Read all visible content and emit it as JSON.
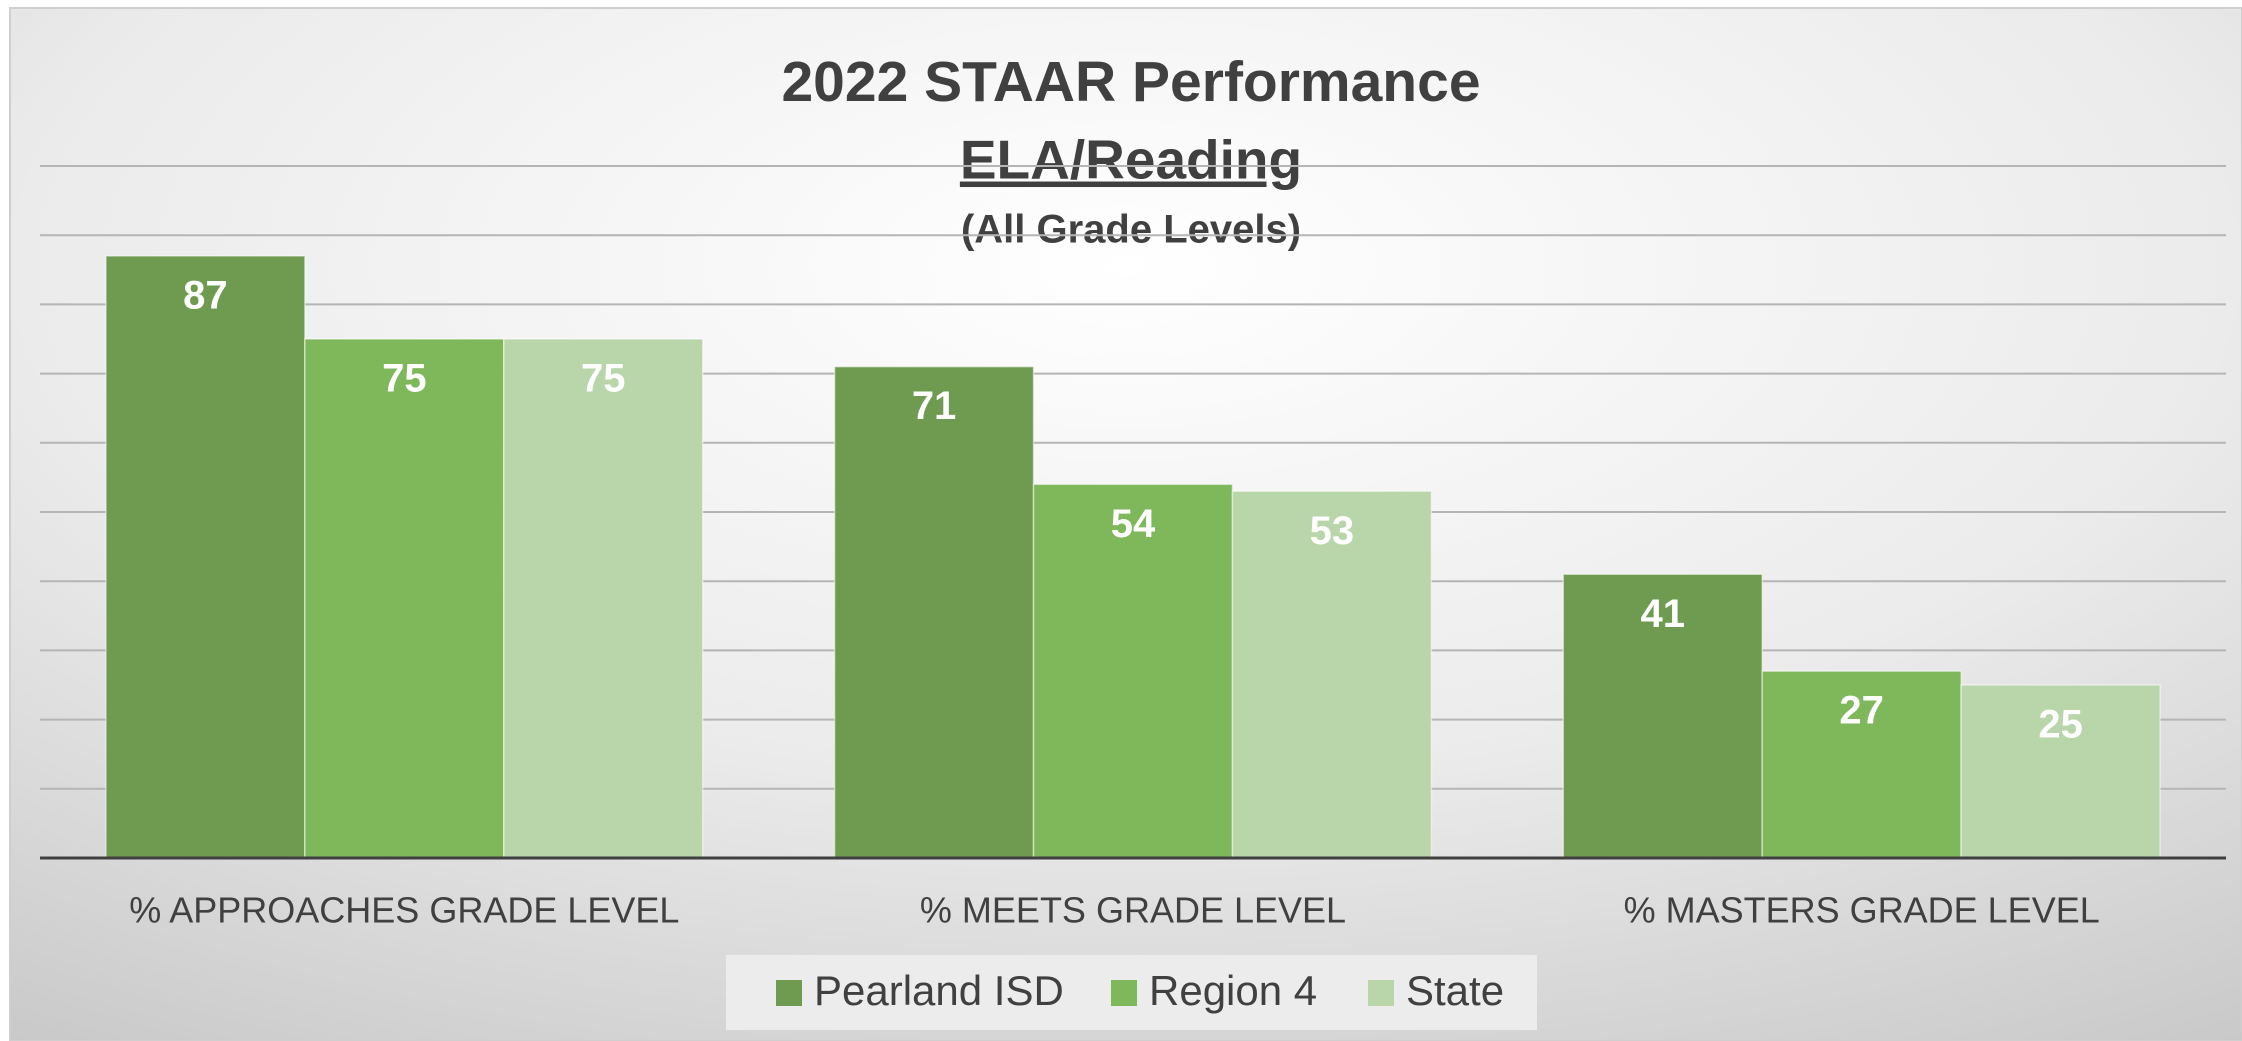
{
  "chart_data": {
    "type": "bar",
    "title": "2022 STAAR Performance",
    "subtitle": "ELA/Reading",
    "annotation": "(All Grade Levels)",
    "categories": [
      "% APPROACHES GRADE LEVEL",
      "% MEETS GRADE LEVEL",
      "% MASTERS GRADE LEVEL"
    ],
    "series": [
      {
        "name": "Pearland ISD",
        "color": "#6e9b50",
        "values": [
          87,
          71,
          41
        ]
      },
      {
        "name": "Region 4",
        "color": "#7fb75b",
        "values": [
          75,
          54,
          27
        ]
      },
      {
        "name": "State",
        "color": "#b9d5aa",
        "values": [
          75,
          53,
          25
        ]
      }
    ],
    "ylim": [
      0,
      100
    ],
    "yticks": [
      0,
      10,
      20,
      30,
      40,
      50,
      60,
      70,
      80,
      90,
      100
    ],
    "grid": true,
    "legend": "bottom"
  }
}
